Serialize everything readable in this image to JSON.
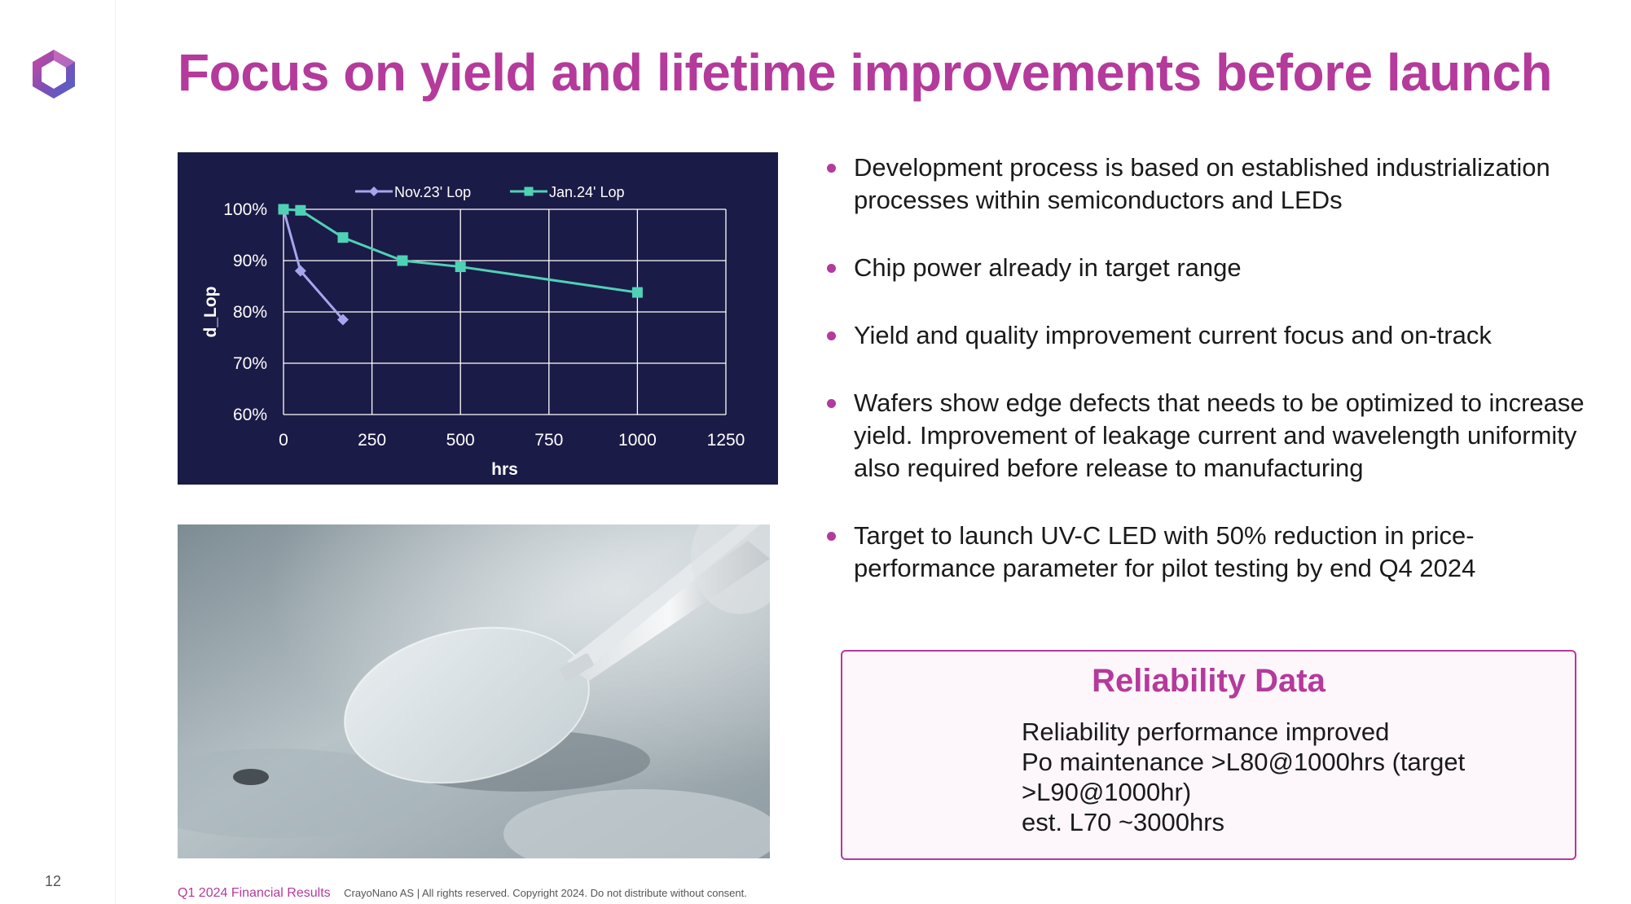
{
  "slide": {
    "title": "Focus on yield and lifetime improvements before launch",
    "page_number": "12"
  },
  "bullets": [
    "Development process is based on established industrialization processes within semiconductors and LEDs",
    "Chip power already in target range",
    "Yield and quality improvement current focus and on-track",
    "Wafers show edge defects that needs to be optimized to increase yield. Improvement of leakage current and wavelength uniformity also required before release to manufacturing",
    "Target to launch UV-C LED with 50% reduction in price-performance parameter for pilot testing by end Q4 2024"
  ],
  "reliability": {
    "title": "Reliability Data",
    "lines": [
      "Reliability performance improved",
      "Po maintenance >L80@1000hrs (target",
      ">L90@1000hr)",
      "est. L70 ~3000hrs"
    ]
  },
  "footer": {
    "brand": "Q1 2024 Financial Results",
    "copyright": "CrayoNano AS | All rights reserved. Copyright 2024. Do not distribute without consent."
  },
  "colors": {
    "accent": "#b43a9b",
    "chart_background": "#1b1b47",
    "series_nov": "#a6a6ee",
    "series_jan": "#4fd1b6"
  },
  "chart_data": {
    "type": "line",
    "xlabel": "hrs",
    "ylabel": "d_Lop",
    "xlim": [
      0,
      1250
    ],
    "ylim": [
      60,
      100
    ],
    "x_ticks": [
      0,
      250,
      500,
      750,
      1000,
      1250
    ],
    "y_ticks": [
      60,
      70,
      80,
      90,
      100
    ],
    "x_tick_labels": [
      "0",
      "250",
      "500",
      "750",
      "1000",
      "1250"
    ],
    "y_tick_labels": [
      "60%",
      "70%",
      "80%",
      "90%",
      "100%"
    ],
    "grid": true,
    "legend_position": "top",
    "series": [
      {
        "name": "Nov.23' Lop",
        "marker": "diamond",
        "color": "#a6a6ee",
        "points": [
          [
            0,
            100
          ],
          [
            48,
            88
          ],
          [
            168,
            78.5
          ]
        ]
      },
      {
        "name": "Jan.24' Lop",
        "marker": "square",
        "color": "#4fd1b6",
        "points": [
          [
            0,
            100
          ],
          [
            48,
            99.8
          ],
          [
            168,
            94.5
          ],
          [
            336,
            90
          ],
          [
            500,
            88.8
          ],
          [
            1000,
            83.8
          ]
        ]
      }
    ]
  }
}
